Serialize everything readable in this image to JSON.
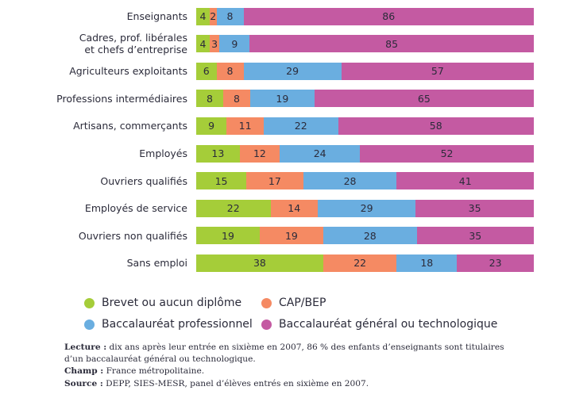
{
  "chart_data": {
    "type": "bar",
    "orientation": "horizontal",
    "stacked": true,
    "normalized_percent": true,
    "title": "",
    "xlabel": "",
    "ylabel": "",
    "xlim": [
      0,
      100
    ],
    "grid": false,
    "legend_position": "bottom",
    "categories": [
      [
        "Enseignants"
      ],
      [
        "Cadres, prof. libérales",
        "et chefs d’entreprise"
      ],
      [
        "Agriculteurs exploitants"
      ],
      [
        "Professions intermédiaires"
      ],
      [
        "Artisans, commerçants"
      ],
      [
        "Employés"
      ],
      [
        "Ouvriers qualifiés"
      ],
      [
        "Employés de service"
      ],
      [
        "Ouvriers non qualifiés"
      ],
      [
        "Sans emploi"
      ]
    ],
    "series": [
      {
        "name": "Brevet ou aucun diplôme",
        "color": "#a5cd39",
        "values": [
          4,
          4,
          6,
          8,
          9,
          13,
          15,
          22,
          19,
          38
        ]
      },
      {
        "name": "CAP/BEP",
        "color": "#f58a63",
        "values": [
          2,
          3,
          8,
          8,
          11,
          12,
          17,
          14,
          19,
          22
        ]
      },
      {
        "name": "Baccalauréat professionnel",
        "color": "#6aaee0",
        "values": [
          8,
          9,
          29,
          19,
          22,
          24,
          28,
          29,
          28,
          18
        ]
      },
      {
        "name": "Baccalauréat général ou technologique",
        "color": "#c45aa2",
        "values": [
          86,
          85,
          57,
          65,
          58,
          52,
          41,
          35,
          35,
          23
        ]
      }
    ]
  },
  "notes": {
    "lecture_label": "Lecture :",
    "lecture_text": " dix ans après leur entrée en sixième en 2007, 86 % des enfants d’enseignants sont titulaires",
    "lecture_text2": "d’un baccalauréat général ou technologique.",
    "champ_label": "Champ :",
    "champ_text": " France métropolitaine.",
    "source_label": "Source :",
    "source_text": " DEPP, SIES-MESR, panel d’élèves entrés en sixième en 2007."
  }
}
